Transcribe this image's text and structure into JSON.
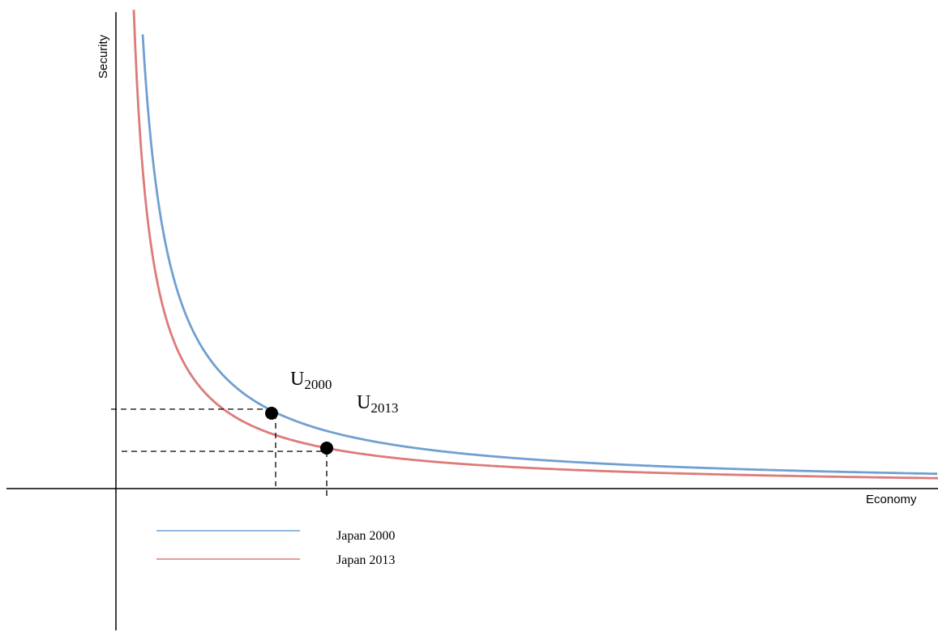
{
  "diagram": {
    "y_axis_label": "Security",
    "x_axis_label": "Economy",
    "curves": [
      {
        "name": "Japan 2000",
        "label_main": "U",
        "label_sub": "2000",
        "color": "#6fa0d1"
      },
      {
        "name": "Japan 2013",
        "label_main": "U",
        "label_sub": "2013",
        "color": "#dd7a7a"
      }
    ],
    "legend": {
      "items": [
        {
          "label": "Japan 2000",
          "color": "#6fa0d1"
        },
        {
          "label": "Japan 2013",
          "color": "#dd7a7a"
        }
      ]
    },
    "point_color": "#000000",
    "guide_line_style": "dashed"
  }
}
